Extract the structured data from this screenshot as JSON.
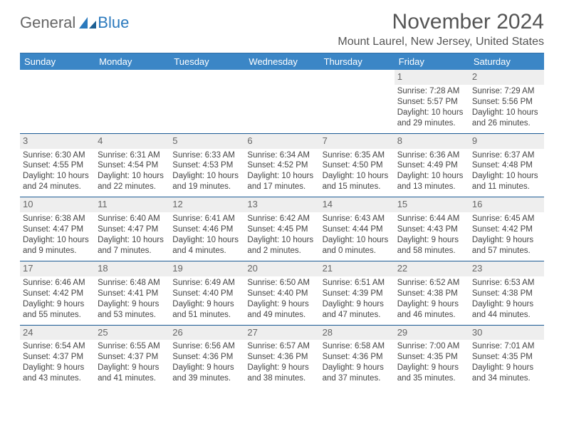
{
  "brand": {
    "part1": "General",
    "part2": "Blue"
  },
  "title": "November 2024",
  "location": "Mount Laurel, New Jersey, United States",
  "colors": {
    "header_bg": "#3b86c6",
    "header_text": "#ffffff",
    "daynum_bg": "#eeeeee",
    "row_border": "#1a5a94",
    "brand_gray": "#666666",
    "brand_blue": "#2a79bd",
    "text": "#444444",
    "background": "#ffffff"
  },
  "weekdays": [
    "Sunday",
    "Monday",
    "Tuesday",
    "Wednesday",
    "Thursday",
    "Friday",
    "Saturday"
  ],
  "weeks": [
    [
      null,
      null,
      null,
      null,
      null,
      {
        "day": "1",
        "sunrise": "Sunrise: 7:28 AM",
        "sunset": "Sunset: 5:57 PM",
        "daylight1": "Daylight: 10 hours",
        "daylight2": "and 29 minutes."
      },
      {
        "day": "2",
        "sunrise": "Sunrise: 7:29 AM",
        "sunset": "Sunset: 5:56 PM",
        "daylight1": "Daylight: 10 hours",
        "daylight2": "and 26 minutes."
      }
    ],
    [
      {
        "day": "3",
        "sunrise": "Sunrise: 6:30 AM",
        "sunset": "Sunset: 4:55 PM",
        "daylight1": "Daylight: 10 hours",
        "daylight2": "and 24 minutes."
      },
      {
        "day": "4",
        "sunrise": "Sunrise: 6:31 AM",
        "sunset": "Sunset: 4:54 PM",
        "daylight1": "Daylight: 10 hours",
        "daylight2": "and 22 minutes."
      },
      {
        "day": "5",
        "sunrise": "Sunrise: 6:33 AM",
        "sunset": "Sunset: 4:53 PM",
        "daylight1": "Daylight: 10 hours",
        "daylight2": "and 19 minutes."
      },
      {
        "day": "6",
        "sunrise": "Sunrise: 6:34 AM",
        "sunset": "Sunset: 4:52 PM",
        "daylight1": "Daylight: 10 hours",
        "daylight2": "and 17 minutes."
      },
      {
        "day": "7",
        "sunrise": "Sunrise: 6:35 AM",
        "sunset": "Sunset: 4:50 PM",
        "daylight1": "Daylight: 10 hours",
        "daylight2": "and 15 minutes."
      },
      {
        "day": "8",
        "sunrise": "Sunrise: 6:36 AM",
        "sunset": "Sunset: 4:49 PM",
        "daylight1": "Daylight: 10 hours",
        "daylight2": "and 13 minutes."
      },
      {
        "day": "9",
        "sunrise": "Sunrise: 6:37 AM",
        "sunset": "Sunset: 4:48 PM",
        "daylight1": "Daylight: 10 hours",
        "daylight2": "and 11 minutes."
      }
    ],
    [
      {
        "day": "10",
        "sunrise": "Sunrise: 6:38 AM",
        "sunset": "Sunset: 4:47 PM",
        "daylight1": "Daylight: 10 hours",
        "daylight2": "and 9 minutes."
      },
      {
        "day": "11",
        "sunrise": "Sunrise: 6:40 AM",
        "sunset": "Sunset: 4:47 PM",
        "daylight1": "Daylight: 10 hours",
        "daylight2": "and 7 minutes."
      },
      {
        "day": "12",
        "sunrise": "Sunrise: 6:41 AM",
        "sunset": "Sunset: 4:46 PM",
        "daylight1": "Daylight: 10 hours",
        "daylight2": "and 4 minutes."
      },
      {
        "day": "13",
        "sunrise": "Sunrise: 6:42 AM",
        "sunset": "Sunset: 4:45 PM",
        "daylight1": "Daylight: 10 hours",
        "daylight2": "and 2 minutes."
      },
      {
        "day": "14",
        "sunrise": "Sunrise: 6:43 AM",
        "sunset": "Sunset: 4:44 PM",
        "daylight1": "Daylight: 10 hours",
        "daylight2": "and 0 minutes."
      },
      {
        "day": "15",
        "sunrise": "Sunrise: 6:44 AM",
        "sunset": "Sunset: 4:43 PM",
        "daylight1": "Daylight: 9 hours",
        "daylight2": "and 58 minutes."
      },
      {
        "day": "16",
        "sunrise": "Sunrise: 6:45 AM",
        "sunset": "Sunset: 4:42 PM",
        "daylight1": "Daylight: 9 hours",
        "daylight2": "and 57 minutes."
      }
    ],
    [
      {
        "day": "17",
        "sunrise": "Sunrise: 6:46 AM",
        "sunset": "Sunset: 4:42 PM",
        "daylight1": "Daylight: 9 hours",
        "daylight2": "and 55 minutes."
      },
      {
        "day": "18",
        "sunrise": "Sunrise: 6:48 AM",
        "sunset": "Sunset: 4:41 PM",
        "daylight1": "Daylight: 9 hours",
        "daylight2": "and 53 minutes."
      },
      {
        "day": "19",
        "sunrise": "Sunrise: 6:49 AM",
        "sunset": "Sunset: 4:40 PM",
        "daylight1": "Daylight: 9 hours",
        "daylight2": "and 51 minutes."
      },
      {
        "day": "20",
        "sunrise": "Sunrise: 6:50 AM",
        "sunset": "Sunset: 4:40 PM",
        "daylight1": "Daylight: 9 hours",
        "daylight2": "and 49 minutes."
      },
      {
        "day": "21",
        "sunrise": "Sunrise: 6:51 AM",
        "sunset": "Sunset: 4:39 PM",
        "daylight1": "Daylight: 9 hours",
        "daylight2": "and 47 minutes."
      },
      {
        "day": "22",
        "sunrise": "Sunrise: 6:52 AM",
        "sunset": "Sunset: 4:38 PM",
        "daylight1": "Daylight: 9 hours",
        "daylight2": "and 46 minutes."
      },
      {
        "day": "23",
        "sunrise": "Sunrise: 6:53 AM",
        "sunset": "Sunset: 4:38 PM",
        "daylight1": "Daylight: 9 hours",
        "daylight2": "and 44 minutes."
      }
    ],
    [
      {
        "day": "24",
        "sunrise": "Sunrise: 6:54 AM",
        "sunset": "Sunset: 4:37 PM",
        "daylight1": "Daylight: 9 hours",
        "daylight2": "and 43 minutes."
      },
      {
        "day": "25",
        "sunrise": "Sunrise: 6:55 AM",
        "sunset": "Sunset: 4:37 PM",
        "daylight1": "Daylight: 9 hours",
        "daylight2": "and 41 minutes."
      },
      {
        "day": "26",
        "sunrise": "Sunrise: 6:56 AM",
        "sunset": "Sunset: 4:36 PM",
        "daylight1": "Daylight: 9 hours",
        "daylight2": "and 39 minutes."
      },
      {
        "day": "27",
        "sunrise": "Sunrise: 6:57 AM",
        "sunset": "Sunset: 4:36 PM",
        "daylight1": "Daylight: 9 hours",
        "daylight2": "and 38 minutes."
      },
      {
        "day": "28",
        "sunrise": "Sunrise: 6:58 AM",
        "sunset": "Sunset: 4:36 PM",
        "daylight1": "Daylight: 9 hours",
        "daylight2": "and 37 minutes."
      },
      {
        "day": "29",
        "sunrise": "Sunrise: 7:00 AM",
        "sunset": "Sunset: 4:35 PM",
        "daylight1": "Daylight: 9 hours",
        "daylight2": "and 35 minutes."
      },
      {
        "day": "30",
        "sunrise": "Sunrise: 7:01 AM",
        "sunset": "Sunset: 4:35 PM",
        "daylight1": "Daylight: 9 hours",
        "daylight2": "and 34 minutes."
      }
    ]
  ]
}
